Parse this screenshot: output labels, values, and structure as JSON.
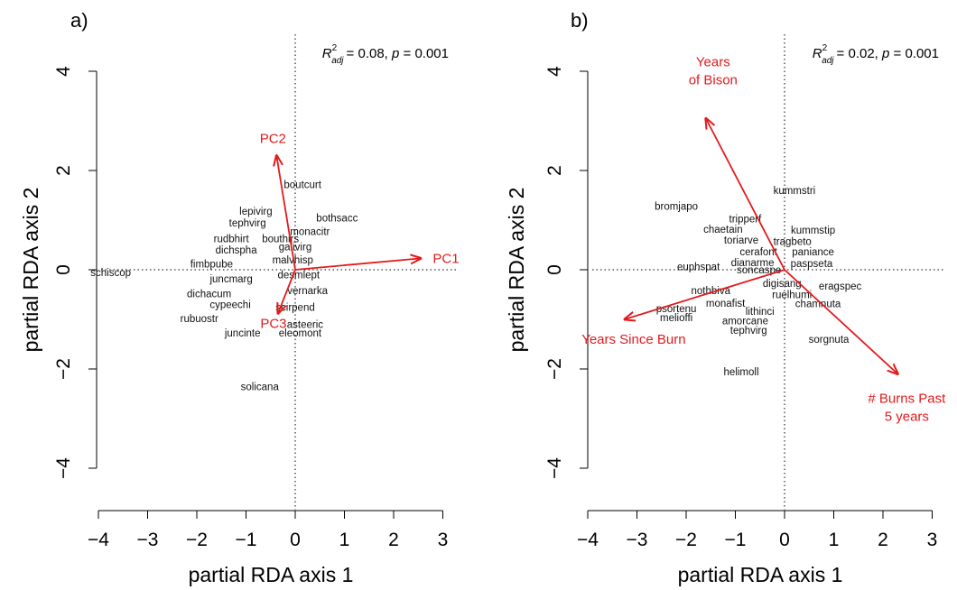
{
  "chart_data": [
    {
      "panel_label": "a)",
      "type": "scatter",
      "xlabel": "partial RDA axis 1",
      "ylabel": "partial RDA axis 2",
      "xlim": [
        -4,
        3
      ],
      "ylim": [
        -4,
        4
      ],
      "xticks": [
        -4,
        -3,
        -2,
        -1,
        0,
        1,
        2,
        3
      ],
      "yticks": [
        -4,
        -2,
        0,
        2,
        4
      ],
      "stat": {
        "r2": "0.08",
        "p": "0.001"
      },
      "species": [
        {
          "label": "schiscop",
          "x": -3.75,
          "y": -0.05
        },
        {
          "label": "boutcurt",
          "x": 0.15,
          "y": 1.72
        },
        {
          "label": "bothsacc",
          "x": 0.85,
          "y": 1.05
        },
        {
          "label": "monacitr",
          "x": 0.3,
          "y": 0.77
        },
        {
          "label": "lepivirg",
          "x": -0.8,
          "y": 1.18
        },
        {
          "label": "tephvirg",
          "x": -0.97,
          "y": 0.95
        },
        {
          "label": "rudbhirt",
          "x": -1.3,
          "y": 0.63
        },
        {
          "label": "bouthirs",
          "x": -0.3,
          "y": 0.63
        },
        {
          "label": "galivirg",
          "x": 0.0,
          "y": 0.46
        },
        {
          "label": "dichspha",
          "x": -1.2,
          "y": 0.4
        },
        {
          "label": "malvhisp",
          "x": -0.05,
          "y": 0.2
        },
        {
          "label": "fimbpube",
          "x": -1.7,
          "y": 0.12
        },
        {
          "label": "desmlept",
          "x": 0.07,
          "y": -0.1
        },
        {
          "label": "juncmarg",
          "x": -1.3,
          "y": -0.18
        },
        {
          "label": "vernarka",
          "x": 0.25,
          "y": -0.42
        },
        {
          "label": "dichacum",
          "x": -1.75,
          "y": -0.48
        },
        {
          "label": "cypeechi",
          "x": -1.32,
          "y": -0.7
        },
        {
          "label": "scirpend",
          "x": 0.0,
          "y": -0.75
        },
        {
          "label": "rubuostr",
          "x": -1.95,
          "y": -0.98
        },
        {
          "label": "asteeric",
          "x": 0.2,
          "y": -1.1
        },
        {
          "label": "juncinte",
          "x": -1.07,
          "y": -1.27
        },
        {
          "label": "eleomont",
          "x": 0.1,
          "y": -1.27
        },
        {
          "label": "solicana",
          "x": -0.72,
          "y": -2.35
        }
      ],
      "vectors": [
        {
          "label": "PC1",
          "x": 2.55,
          "y": 0.23
        },
        {
          "label": "PC2",
          "x": -0.38,
          "y": 2.3
        },
        {
          "label": "PC3",
          "x": -0.35,
          "y": -0.88
        }
      ]
    },
    {
      "panel_label": "b)",
      "type": "scatter",
      "xlabel": "partial RDA axis 1",
      "ylabel": "partial RDA axis 2",
      "xlim": [
        -4,
        3
      ],
      "ylim": [
        -4,
        4
      ],
      "xticks": [
        -4,
        -3,
        -2,
        -1,
        0,
        1,
        2,
        3
      ],
      "yticks": [
        -4,
        -2,
        0,
        2,
        4
      ],
      "stat": {
        "r2": "0.02",
        "p": "0.001"
      },
      "species": [
        {
          "label": "kummstri",
          "x": 0.2,
          "y": 1.6
        },
        {
          "label": "bromjapo",
          "x": -2.2,
          "y": 1.28
        },
        {
          "label": "tripperf",
          "x": -0.8,
          "y": 1.03
        },
        {
          "label": "chaetain",
          "x": -1.25,
          "y": 0.82
        },
        {
          "label": "kummstip",
          "x": 0.58,
          "y": 0.8
        },
        {
          "label": "toriarve",
          "x": -0.88,
          "y": 0.6
        },
        {
          "label": "tragbeto",
          "x": 0.16,
          "y": 0.57
        },
        {
          "label": "cerafont",
          "x": -0.53,
          "y": 0.36
        },
        {
          "label": "paniance",
          "x": 0.58,
          "y": 0.36
        },
        {
          "label": "dianarme",
          "x": -0.65,
          "y": 0.15
        },
        {
          "label": "paspseta",
          "x": 0.55,
          "y": 0.13
        },
        {
          "label": "euphspat",
          "x": -1.75,
          "y": 0.06
        },
        {
          "label": "soncaspe",
          "x": -0.52,
          "y": 0.0
        },
        {
          "label": "digisang",
          "x": -0.05,
          "y": -0.27
        },
        {
          "label": "eragspec",
          "x": 1.13,
          "y": -0.33
        },
        {
          "label": "nothbiva",
          "x": -1.5,
          "y": -0.42
        },
        {
          "label": "ruelhumi",
          "x": 0.15,
          "y": -0.5
        },
        {
          "label": "monafist",
          "x": -1.2,
          "y": -0.67
        },
        {
          "label": "chamnuta",
          "x": 0.68,
          "y": -0.68
        },
        {
          "label": "lithinci",
          "x": -0.5,
          "y": -0.84
        },
        {
          "label": "psortenu",
          "x": -2.2,
          "y": -0.78
        },
        {
          "label": "melioffi",
          "x": -2.2,
          "y": -0.96
        },
        {
          "label": "amorcane",
          "x": -0.8,
          "y": -1.03
        },
        {
          "label": "tephvirg",
          "x": -0.73,
          "y": -1.22
        },
        {
          "label": "sorgnuta",
          "x": 0.9,
          "y": -1.4
        },
        {
          "label": "helimoll",
          "x": -0.88,
          "y": -2.05
        }
      ],
      "vectors": [
        {
          "label": "Years of Bison",
          "lines": [
            "Years",
            "of Bison"
          ],
          "x": -1.6,
          "y": 3.05
        },
        {
          "label": "Years Since Burn",
          "lines": [
            "Years Since Burn"
          ],
          "x": -3.25,
          "y": -1.0
        },
        {
          "label": "# Burns Past 5 years",
          "lines": [
            "# Burns Past",
            "5 years"
          ],
          "x": 2.3,
          "y": -2.1
        }
      ]
    }
  ]
}
